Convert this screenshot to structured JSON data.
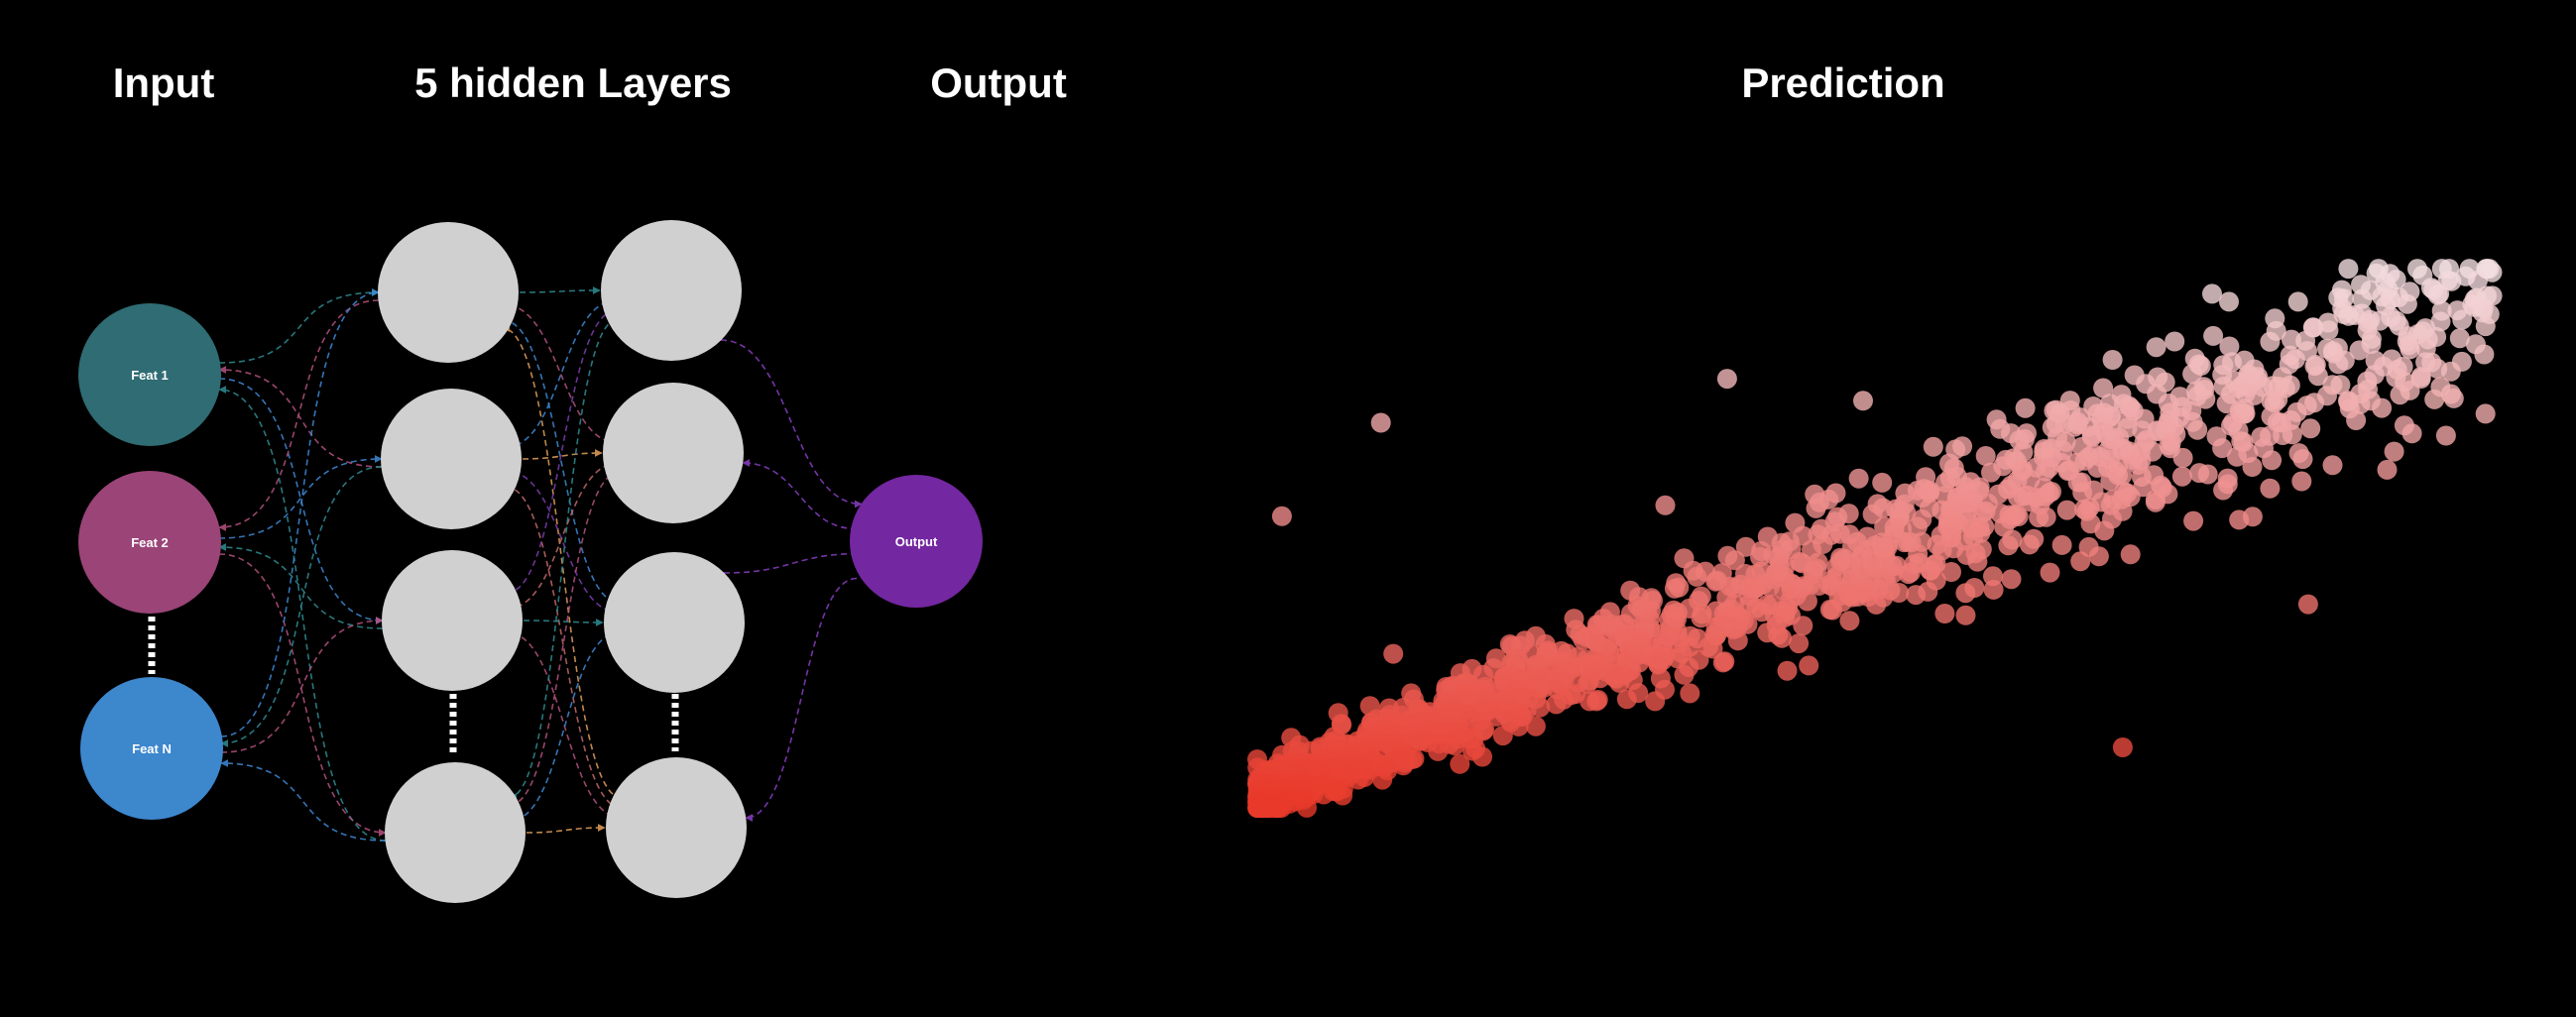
{
  "headings": {
    "input": "Input",
    "hidden": "5 hidden Layers",
    "output": "Output",
    "prediction": "Prediction"
  },
  "nodes": {
    "feat1": "Feat 1",
    "feat2": "Feat 2",
    "featN": "Feat N",
    "output": "Output"
  },
  "colors": {
    "background": "#000000",
    "feat1": "#2f6c73",
    "feat2": "#9a4477",
    "featN": "#3d87cd",
    "output": "#7327a0",
    "hidden_node": "#d0d0d0",
    "point_low": "#e8392a",
    "point_high": "#f2e2e5"
  },
  "chart_data": {
    "type": "scatter",
    "title": "Prediction",
    "xlabel": "",
    "ylabel": "",
    "axes_visible": false,
    "grid": false,
    "legend": "none",
    "color_encoding": "gradient from red (low values) to pale pink/white (high values)",
    "xlim": [
      0,
      1
    ],
    "ylim": [
      0,
      1
    ],
    "trend": "strong positive, roughly linear; dense cluster at low values, sparser spread at high values",
    "outliers": [
      [
        0.1,
        0.7
      ],
      [
        0.02,
        0.53
      ],
      [
        0.11,
        0.28
      ],
      [
        0.38,
        0.78
      ],
      [
        0.82,
        0.74
      ],
      [
        0.7,
        0.11
      ],
      [
        0.85,
        0.37
      ],
      [
        0.58,
        0.4
      ],
      [
        0.33,
        0.55
      ],
      [
        0.49,
        0.74
      ]
    ]
  }
}
